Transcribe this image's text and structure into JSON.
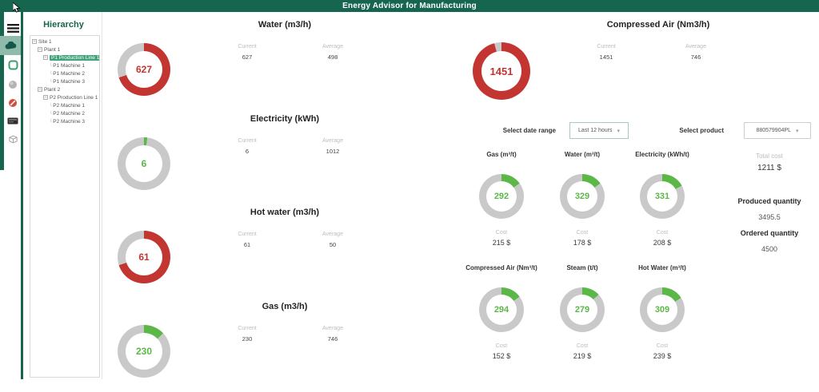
{
  "header": {
    "title": "Energy Advisor for Manufacturing"
  },
  "sidebar": {
    "icons": [
      {
        "name": "menu-icon"
      },
      {
        "name": "cloud-icon",
        "active": true
      },
      {
        "name": "panel-outline-icon"
      },
      {
        "name": "sphere-icon"
      },
      {
        "name": "gauge-dial-icon"
      },
      {
        "name": "keyboard-icon"
      },
      {
        "name": "cube-icon"
      }
    ]
  },
  "hierarchy": {
    "title": "Hierarchy",
    "tree": [
      {
        "label": "Site 1",
        "depth": 0,
        "type": "branch",
        "selected": false
      },
      {
        "label": "Plant 1",
        "depth": 1,
        "type": "branch",
        "selected": false
      },
      {
        "label": "P1 Production Line 1",
        "depth": 2,
        "type": "branch",
        "selected": true
      },
      {
        "label": "P1 Machine 1",
        "depth": 3,
        "type": "leaf",
        "selected": false
      },
      {
        "label": "P1 Machine 2",
        "depth": 3,
        "type": "leaf",
        "selected": false
      },
      {
        "label": "P1 Machine 3",
        "depth": 3,
        "type": "leaf",
        "selected": false
      },
      {
        "label": "Plant 2",
        "depth": 1,
        "type": "branch",
        "selected": false
      },
      {
        "label": "P2 Production Line 1",
        "depth": 2,
        "type": "branch",
        "selected": false
      },
      {
        "label": "P2 Machine 1",
        "depth": 3,
        "type": "leaf",
        "selected": false
      },
      {
        "label": "P2 Machine 2",
        "depth": 3,
        "type": "leaf",
        "selected": false
      },
      {
        "label": "P2 Machine 3",
        "depth": 3,
        "type": "leaf",
        "selected": false
      }
    ]
  },
  "labels": {
    "current": "Current",
    "average": "Average",
    "cost": "Cost"
  },
  "live_metrics": [
    {
      "title": "Water (m3/h)",
      "value": "627",
      "current": "627",
      "average": "498",
      "color": "red",
      "fraction": 0.7
    },
    {
      "title": "Electricity (kWh)",
      "value": "6",
      "current": "6",
      "average": "1012",
      "color": "green",
      "fraction": 0.02
    },
    {
      "title": "Hot water (m3/h)",
      "value": "61",
      "current": "61",
      "average": "50",
      "color": "red",
      "fraction": 0.7
    },
    {
      "title": "Gas (m3/h)",
      "value": "230",
      "current": "230",
      "average": "746",
      "color": "green",
      "fraction": 0.13
    }
  ],
  "compressed_air": {
    "title": "Compressed Air (Nm3/h)",
    "value": "1451",
    "current": "1451",
    "average": "746",
    "color": "red",
    "fraction": 0.96
  },
  "filters": {
    "date_range_label": "Select date range",
    "date_range_value": "Last 12 hours",
    "product_label": "Select product",
    "product_value": "880579904PL"
  },
  "per_ton_metrics": [
    {
      "title": "Gas (m³/t)",
      "value": "292",
      "cost": "215 $",
      "fraction": 0.15
    },
    {
      "title": "Water (m³/t)",
      "value": "329",
      "cost": "178 $",
      "fraction": 0.15
    },
    {
      "title": "Electricity (kWh/t)",
      "value": "331",
      "cost": "208 $",
      "fraction": 0.17
    },
    {
      "title": "Compressed Air (Nm³/t)",
      "value": "294",
      "cost": "152 $",
      "fraction": 0.15
    },
    {
      "title": "Steam (t/t)",
      "value": "279",
      "cost": "219 $",
      "fraction": 0.13
    },
    {
      "title": "Hot Water (m³/t)",
      "value": "309",
      "cost": "239 $",
      "fraction": 0.16
    }
  ],
  "summary": {
    "total_cost_label": "Total cost",
    "total_cost_value": "1211 $",
    "produced_label": "Produced quantity",
    "produced_value": "3495.5",
    "ordered_label": "Ordered quantity",
    "ordered_value": "4500"
  },
  "colors": {
    "header_green": "#16654f",
    "selected_green": "#3fa37c",
    "arc_red": "#c23531",
    "arc_green": "#5bb847",
    "arc_gray": "#c9c9c9"
  }
}
